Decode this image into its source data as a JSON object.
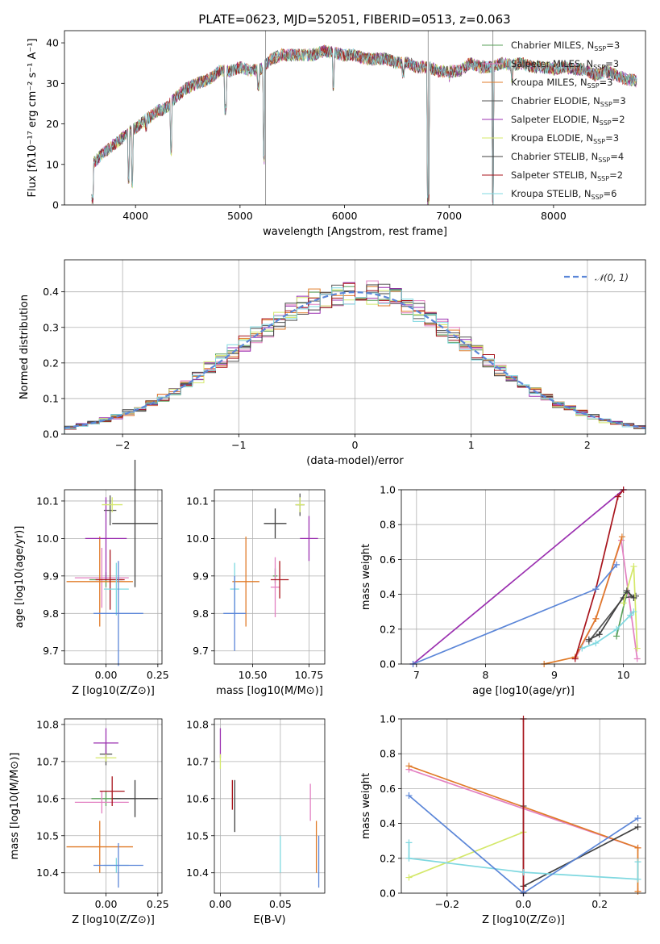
{
  "title": "PLATE=0623, MJD=52051, FIBERID=0513, z=0.063",
  "models": [
    {
      "name": "Chabrier MILES",
      "nssp": "3",
      "color": "#5aa05a"
    },
    {
      "name": "Salpeter MILES",
      "nssp": "3",
      "color": "#e381c2"
    },
    {
      "name": "Kroupa MILES",
      "nssp": "3",
      "color": "#e07b28"
    },
    {
      "name": "Chabrier ELODIE",
      "nssp": "3",
      "color": "#555555"
    },
    {
      "name": "Salpeter ELODIE",
      "nssp": "2",
      "color": "#9b30b0"
    },
    {
      "name": "Kroupa ELODIE",
      "nssp": "3",
      "color": "#d4e86a"
    },
    {
      "name": "Chabrier STELIB",
      "nssp": "4",
      "color": "#404040"
    },
    {
      "name": "Salpeter STELIB",
      "nssp": "2",
      "color": "#a8141c"
    },
    {
      "name": "Kroupa STELIB",
      "nssp": "6",
      "color": "#7fd8e0"
    }
  ],
  "extra_colors": {
    "blue": "#5b86d8"
  },
  "chart_data": [
    {
      "type": "line",
      "id": "spectrum",
      "xlabel": "wavelength [Angstrom, rest frame]",
      "ylabel": "Flux [fλ10⁻¹⁷ erg cm⁻² s⁻¹ A⁻¹]",
      "xlim": [
        3320,
        8880
      ],
      "ylim": [
        0,
        43
      ],
      "xticks": [
        4000,
        5000,
        6000,
        7000,
        8000
      ],
      "yticks": [
        0,
        10,
        20,
        30,
        40
      ],
      "continuum": [
        [
          3580,
          10
        ],
        [
          3700,
          13
        ],
        [
          3800,
          15
        ],
        [
          3900,
          17
        ],
        [
          4000,
          19
        ],
        [
          4100,
          21
        ],
        [
          4200,
          23
        ],
        [
          4300,
          24
        ],
        [
          4400,
          27
        ],
        [
          4500,
          29
        ],
        [
          4600,
          30
        ],
        [
          4700,
          31
        ],
        [
          4800,
          33
        ],
        [
          4900,
          33
        ],
        [
          5000,
          34
        ],
        [
          5100,
          33
        ],
        [
          5200,
          33.5
        ],
        [
          5300,
          36
        ],
        [
          5400,
          37
        ],
        [
          5500,
          37
        ],
        [
          5600,
          37
        ],
        [
          5700,
          37
        ],
        [
          5800,
          38
        ],
        [
          5900,
          37.5
        ],
        [
          6000,
          37
        ],
        [
          6100,
          37
        ],
        [
          6200,
          36
        ],
        [
          6300,
          36
        ],
        [
          6400,
          36
        ],
        [
          6500,
          35
        ],
        [
          6600,
          35
        ],
        [
          6700,
          34
        ],
        [
          6800,
          34
        ],
        [
          6900,
          33
        ],
        [
          7000,
          33
        ],
        [
          7100,
          33
        ],
        [
          7200,
          35
        ],
        [
          7300,
          34
        ],
        [
          7400,
          34
        ],
        [
          7500,
          35
        ],
        [
          7600,
          34.5
        ],
        [
          7700,
          35
        ],
        [
          7800,
          34
        ],
        [
          7900,
          34
        ],
        [
          8000,
          33.5
        ],
        [
          8100,
          34
        ],
        [
          8200,
          33.5
        ],
        [
          8300,
          33.5
        ],
        [
          8400,
          32
        ],
        [
          8500,
          33
        ],
        [
          8600,
          32
        ],
        [
          8700,
          31
        ],
        [
          8800,
          30.5
        ]
      ],
      "dips": [
        [
          3580,
          0
        ],
        [
          3590,
          0
        ],
        [
          3933,
          5
        ],
        [
          3968,
          4
        ],
        [
          4102,
          18
        ],
        [
          4340,
          12
        ],
        [
          4861,
          22
        ],
        [
          5175,
          28
        ],
        [
          5230,
          10
        ],
        [
          5893,
          28
        ],
        [
          6563,
          31
        ],
        [
          6800,
          0
        ],
        [
          7000,
          30
        ],
        [
          7420,
          0
        ],
        [
          7600,
          30
        ]
      ],
      "spikes": [
        [
          5245,
          43
        ],
        [
          6800,
          43
        ],
        [
          7420,
          43
        ]
      ]
    },
    {
      "type": "histogram",
      "id": "residuals",
      "xlabel": "(data-model)/error",
      "ylabel": "Normed distribution",
      "xlim": [
        -2.5,
        2.5
      ],
      "ylim": [
        0,
        0.49
      ],
      "xticks": [
        -2,
        -1,
        0,
        1,
        2
      ],
      "yticks": [
        0.0,
        0.1,
        0.2,
        0.3,
        0.4
      ],
      "bin_width": 0.1,
      "gaussian_label": "𝒩(0, 1)"
    },
    {
      "type": "scatter",
      "id": "age-vs-Z",
      "xlabel": "Z [log10(Z/Z⊙)]",
      "ylabel": "age [log10(age/yr)]",
      "xlim": [
        -0.2,
        0.27
      ],
      "ylim": [
        9.665,
        10.13
      ],
      "xticks": [
        -0.0,
        0.25
      ],
      "yticks": [
        9.7,
        9.8,
        9.9,
        10.0,
        10.1
      ],
      "points": [
        {
          "model": 0,
          "x": 0.0,
          "y": 9.89,
          "xerr": 0.08,
          "yerr": 0.02
        },
        {
          "model": 1,
          "x": -0.02,
          "y": 9.895,
          "xerr": 0.13,
          "yerr": 0.08
        },
        {
          "model": 2,
          "x": -0.03,
          "y": 9.885,
          "xerr": 0.16,
          "yerr": 0.12
        },
        {
          "model": 3,
          "x": 0.02,
          "y": 10.075,
          "xerr": 0.03,
          "yerr": 0.04
        },
        {
          "model": 4,
          "x": 0.0,
          "y": 10.0,
          "xerr": 0.1,
          "yerr": 0.11
        },
        {
          "model": 5,
          "x": 0.03,
          "y": 10.09,
          "xerr": 0.05,
          "yerr": 0.02
        },
        {
          "model": 6,
          "x": 0.14,
          "y": 10.04,
          "xerr": 0.11,
          "yerr": 0.17
        },
        {
          "model": 7,
          "x": 0.02,
          "y": 9.89,
          "xerr": 0.07,
          "yerr": 0.08
        },
        {
          "model": 8,
          "x": 0.05,
          "y": 9.865,
          "xerr": 0.06,
          "yerr": 0.07
        },
        {
          "color": "blue",
          "x": 0.06,
          "y": 9.8,
          "xerr": 0.12,
          "yerr": 0.14
        }
      ]
    },
    {
      "type": "scatter",
      "id": "age-vs-mass",
      "xlabel": "mass [log10(M/M⊙)]",
      "ylabel": "",
      "xlim": [
        10.33,
        10.82
      ],
      "ylim": [
        9.665,
        10.13
      ],
      "xticks": [
        10.5,
        10.75
      ],
      "yticks": [
        9.7,
        9.8,
        9.9,
        10.0,
        10.1
      ],
      "points": [
        {
          "model": 0,
          "x": 10.6,
          "y": 9.9,
          "xerr": 0.01,
          "yerr": 0.02
        },
        {
          "model": 1,
          "x": 10.6,
          "y": 9.87,
          "xerr": 0.02,
          "yerr": 0.08
        },
        {
          "model": 2,
          "x": 10.47,
          "y": 9.885,
          "xerr": 0.06,
          "yerr": 0.12
        },
        {
          "model": 3,
          "x": 10.71,
          "y": 10.09,
          "xerr": 0.02,
          "yerr": 0.03
        },
        {
          "model": 4,
          "x": 10.75,
          "y": 10.0,
          "xerr": 0.04,
          "yerr": 0.06
        },
        {
          "model": 5,
          "x": 10.71,
          "y": 10.09,
          "xerr": 0.02,
          "yerr": 0.02
        },
        {
          "model": 6,
          "x": 10.6,
          "y": 10.04,
          "xerr": 0.05,
          "yerr": 0.04
        },
        {
          "model": 7,
          "x": 10.62,
          "y": 9.89,
          "xerr": 0.04,
          "yerr": 0.05
        },
        {
          "model": 8,
          "x": 10.42,
          "y": 9.865,
          "xerr": 0.02,
          "yerr": 0.07
        },
        {
          "color": "blue",
          "x": 10.42,
          "y": 9.8,
          "xerr": 0.05,
          "yerr": 0.1
        }
      ]
    },
    {
      "type": "line",
      "id": "weight-vs-age",
      "xlabel": "age [log10(age/yr)]",
      "ylabel": "mass weight",
      "xlim": [
        6.78,
        10.32
      ],
      "ylim": [
        0,
        1.0
      ],
      "xticks": [
        7,
        8,
        9,
        10
      ],
      "yticks": [
        0.0,
        0.2,
        0.4,
        0.6,
        0.8,
        1.0
      ],
      "series": [
        {
          "model": 0,
          "x": [
            9.9,
            10.05,
            10.15
          ],
          "y": [
            0.16,
            0.41,
            0.38
          ]
        },
        {
          "model": 1,
          "x": [
            9.3,
            9.6,
            9.97,
            10.2
          ],
          "y": [
            0.03,
            0.26,
            0.71,
            0.03
          ]
        },
        {
          "model": 2,
          "x": [
            8.85,
            9.3,
            9.6,
            9.98
          ],
          "y": [
            0.0,
            0.04,
            0.26,
            0.73
          ]
        },
        {
          "model": 3,
          "x": [
            9.5,
            10.0,
            10.18
          ],
          "y": [
            0.13,
            0.38,
            0.39
          ]
        },
        {
          "model": 4,
          "x": [
            6.95,
            10.0
          ],
          "y": [
            0.0,
            1.0
          ]
        },
        {
          "model": 5,
          "x": [
            10.0,
            10.15,
            10.2
          ],
          "y": [
            0.35,
            0.56,
            0.09
          ]
        },
        {
          "model": 6,
          "x": [
            9.5,
            9.65,
            10.05,
            10.15
          ],
          "y": [
            0.14,
            0.17,
            0.42,
            0.38
          ]
        },
        {
          "model": 7,
          "x": [
            9.3,
            9.6,
            9.92,
            10.0
          ],
          "y": [
            0.03,
            0.43,
            0.96,
            1.0
          ]
        },
        {
          "model": 8,
          "x": [
            9.4,
            9.6,
            9.9,
            10.1,
            10.15
          ],
          "y": [
            0.09,
            0.12,
            0.2,
            0.28,
            0.3
          ]
        },
        {
          "color": "blue",
          "x": [
            6.95,
            9.6,
            9.9
          ],
          "y": [
            0.0,
            0.43,
            0.57
          ]
        }
      ]
    },
    {
      "type": "scatter",
      "id": "mass-vs-Z",
      "xlabel": "Z [log10(Z/Z⊙)]",
      "ylabel": "mass [log10(M/M⊙)]",
      "xlim": [
        -0.2,
        0.27
      ],
      "ylim": [
        10.345,
        10.815
      ],
      "xticks": [
        -0.0,
        0.25
      ],
      "yticks": [
        10.4,
        10.5,
        10.6,
        10.7,
        10.8
      ],
      "points": [
        {
          "model": 0,
          "x": 0.0,
          "y": 10.6,
          "xerr": 0.07,
          "yerr": 0.02
        },
        {
          "model": 1,
          "x": -0.02,
          "y": 10.59,
          "xerr": 0.13,
          "yerr": 0.03
        },
        {
          "model": 2,
          "x": -0.03,
          "y": 10.47,
          "xerr": 0.16,
          "yerr": 0.07
        },
        {
          "model": 3,
          "x": 0.0,
          "y": 10.72,
          "xerr": 0.03,
          "yerr": 0.03
        },
        {
          "model": 4,
          "x": 0.0,
          "y": 10.75,
          "xerr": 0.06,
          "yerr": 0.04
        },
        {
          "model": 5,
          "x": 0.0,
          "y": 10.71,
          "xerr": 0.05,
          "yerr": 0.01
        },
        {
          "model": 6,
          "x": 0.14,
          "y": 10.6,
          "xerr": 0.11,
          "yerr": 0.05
        },
        {
          "model": 7,
          "x": 0.03,
          "y": 10.62,
          "xerr": 0.06,
          "yerr": 0.04
        },
        {
          "model": 8,
          "x": 0.05,
          "y": 10.42,
          "xerr": 0.06,
          "yerr": 0.02
        },
        {
          "color": "blue",
          "x": 0.06,
          "y": 10.42,
          "xerr": 0.12,
          "yerr": 0.06
        }
      ]
    },
    {
      "type": "scatter",
      "id": "mass-vs-ebv",
      "xlabel": "E(B-V)",
      "ylabel": "",
      "xlim": [
        -0.005,
        0.087
      ],
      "ylim": [
        10.345,
        10.815
      ],
      "xticks": [
        0.0,
        0.05
      ],
      "yticks": [
        10.4,
        10.5,
        10.6,
        10.7,
        10.8
      ],
      "points": [
        {
          "model": 1,
          "x": 0.075,
          "y": 10.59,
          "xerr": 0.0,
          "yerr": 0.05
        },
        {
          "model": 2,
          "x": 0.08,
          "y": 10.47,
          "xerr": 0.0,
          "yerr": 0.07
        },
        {
          "model": 4,
          "x": 0.0,
          "y": 10.75,
          "xerr": 0.0,
          "yerr": 0.04
        },
        {
          "model": 5,
          "x": 0.0,
          "y": 10.7,
          "xerr": 0.0,
          "yerr": 0.02
        },
        {
          "model": 6,
          "x": 0.012,
          "y": 10.58,
          "xerr": 0.0,
          "yerr": 0.07
        },
        {
          "model": 7,
          "x": 0.01,
          "y": 10.61,
          "xerr": 0.0,
          "yerr": 0.04
        },
        {
          "model": 8,
          "x": 0.05,
          "y": 10.45,
          "xerr": 0.0,
          "yerr": 0.05
        },
        {
          "color": "blue",
          "x": 0.082,
          "y": 10.43,
          "xerr": 0.0,
          "yerr": 0.07
        }
      ]
    },
    {
      "type": "line",
      "id": "weight-vs-Z",
      "xlabel": "Z [log10(Z/Z⊙)]",
      "ylabel": "mass weight",
      "xlim": [
        -0.32,
        0.32
      ],
      "ylim": [
        0,
        1.0
      ],
      "xticks": [
        -0.2,
        0.0,
        0.2
      ],
      "yticks": [
        0.0,
        0.2,
        0.4,
        0.6,
        0.8,
        1.0
      ],
      "series": [
        {
          "model": 1,
          "x": [
            -0.3,
            0.3
          ],
          "y": [
            0.71,
            0.26
          ]
        },
        {
          "model": 2,
          "x": [
            -0.3,
            0.3,
            0.3
          ],
          "y": [
            0.73,
            0.26,
            0.01
          ]
        },
        {
          "model": 3,
          "x": [
            0.0,
            0.0
          ],
          "y": [
            0.0,
            0.5
          ]
        },
        {
          "model": 5,
          "x": [
            -0.3,
            0.0
          ],
          "y": [
            0.09,
            0.35
          ]
        },
        {
          "model": 6,
          "x": [
            0.0,
            0.3
          ],
          "y": [
            0.04,
            0.38
          ]
        },
        {
          "model": 7,
          "x": [
            0.0,
            0.0
          ],
          "y": [
            0.0,
            1.0
          ]
        },
        {
          "model": 8,
          "x": [
            -0.3,
            -0.3,
            0.0,
            0.3,
            0.3
          ],
          "y": [
            0.29,
            0.2,
            0.12,
            0.08,
            0.18
          ]
        },
        {
          "color": "blue",
          "x": [
            -0.3,
            0.0,
            0.3
          ],
          "y": [
            0.56,
            0.0,
            0.43
          ]
        }
      ]
    }
  ]
}
